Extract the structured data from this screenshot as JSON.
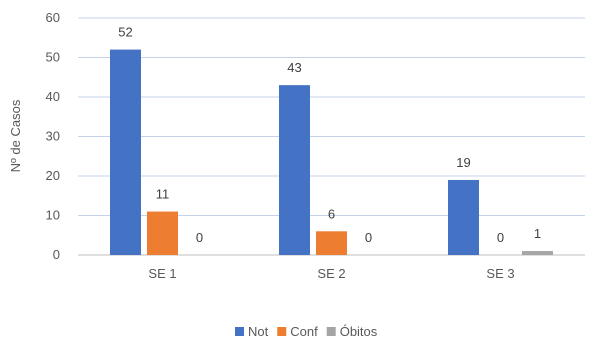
{
  "chart_data": {
    "type": "bar",
    "categories": [
      "SE 1",
      "SE 2",
      "SE 3"
    ],
    "series": [
      {
        "name": "Not",
        "values": [
          52,
          43,
          19
        ],
        "color": "#4472C4"
      },
      {
        "name": "Conf",
        "values": [
          11,
          6,
          0
        ],
        "color": "#ED7D31"
      },
      {
        "name": "Óbitos",
        "values": [
          0,
          0,
          1
        ],
        "color": "#A5A5A5"
      }
    ],
    "title": "",
    "xlabel": "",
    "ylabel": "Nº de Casos",
    "ylim": [
      0,
      60
    ],
    "yticks": [
      0,
      10,
      20,
      30,
      40,
      50,
      60
    ],
    "grid": true,
    "legend_position": "bottom"
  }
}
